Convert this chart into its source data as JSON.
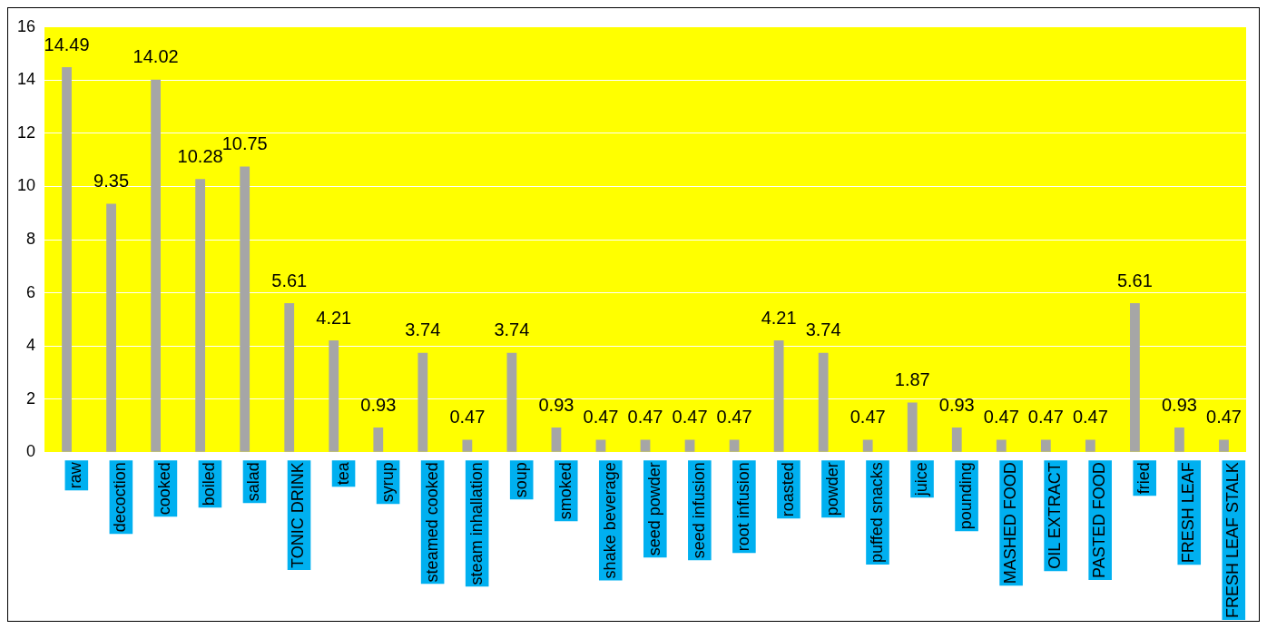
{
  "chart_data": {
    "type": "bar",
    "categories": [
      "raw",
      "decoction",
      "cooked",
      "boiled",
      "salad",
      "TONIC DRINK",
      "tea",
      "syrup",
      "steamed cooked",
      "steam inhallation",
      "soup",
      "smoked",
      "shake beverage",
      "seed powder",
      "seed infusion",
      "root infusion",
      "roasted",
      "powder",
      "puffed snacks",
      "juice",
      "pounding",
      "MASHED FOOD",
      "OIL EXTRACT",
      "PASTED FOOD",
      "fried",
      "FRESH LEAF",
      "FRESH LEAF STALK"
    ],
    "values": [
      14.49,
      9.35,
      14.02,
      10.28,
      10.75,
      5.61,
      4.21,
      0.93,
      3.74,
      0.47,
      3.74,
      0.93,
      0.47,
      0.47,
      0.47,
      0.47,
      4.21,
      3.74,
      0.47,
      1.87,
      0.93,
      0.47,
      0.47,
      0.47,
      5.61,
      0.93,
      0.47
    ],
    "color": "#a6a6a6",
    "ylim": [
      0,
      16
    ],
    "yticks": [
      0,
      2,
      4,
      6,
      8,
      10,
      12,
      14,
      16
    ],
    "grid": "y",
    "legend": false,
    "data_labels": true
  }
}
